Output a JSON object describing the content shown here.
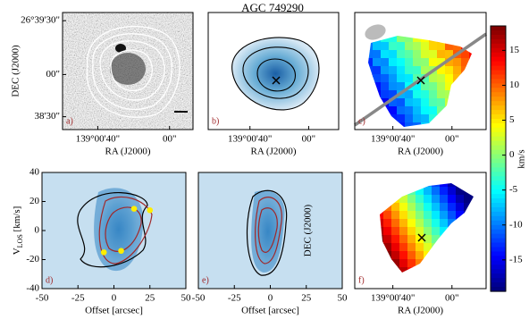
{
  "title": "AGC 749290",
  "colorbar": {
    "label": "km/s",
    "lim": [
      -19.5,
      18.5
    ],
    "ticks": [
      -15,
      -10,
      -5,
      0,
      5,
      10,
      15
    ]
  },
  "chart_data": [
    {
      "type": "image",
      "panel_label": "a)",
      "xlabel": "RA (J2000)",
      "ylabel": "DEC (J2000)",
      "xtick_labels": [
        "139°00'40\"",
        "00\""
      ],
      "ytick_labels": [
        "26°39'30\"",
        "00\"",
        "38'30\""
      ]
    },
    {
      "type": "image",
      "panel_label": "b)",
      "xlabel": "RA (J2000)",
      "xtick_labels": [
        "139°00'40\"",
        "00\""
      ]
    },
    {
      "type": "image",
      "panel_label": "c)",
      "xlabel": "RA (J2000)",
      "xtick_labels": [
        "139°00'40\"",
        "00\""
      ]
    },
    {
      "type": "pv",
      "panel_label": "d)",
      "xlabel": "Offset [arcsec]",
      "ylabel_parts": [
        "V",
        "LOS",
        " [km/s]"
      ],
      "xlim": [
        -50,
        50
      ],
      "xticks": [
        -50,
        -25,
        0,
        25,
        50
      ],
      "ylim": [
        -40,
        40
      ],
      "yticks": [
        -40,
        -20,
        0,
        20,
        40
      ],
      "points": {
        "color": "#ffee00",
        "x": [
          14,
          25,
          -7,
          5
        ],
        "y": [
          15,
          14,
          -15,
          -14
        ]
      }
    },
    {
      "type": "pv",
      "panel_label": "e)",
      "xlabel": "Offset [arcsec]",
      "xlim": [
        -50,
        50
      ],
      "xticks": [
        -50,
        -25,
        0,
        25,
        50
      ],
      "ylim": [
        -40,
        40
      ]
    },
    {
      "type": "image",
      "panel_label": "f)",
      "xlabel": "RA (J2000)",
      "ylabel": "DEC (J2000)",
      "xtick_labels": [
        "139°00'40\"",
        "00\""
      ]
    }
  ]
}
